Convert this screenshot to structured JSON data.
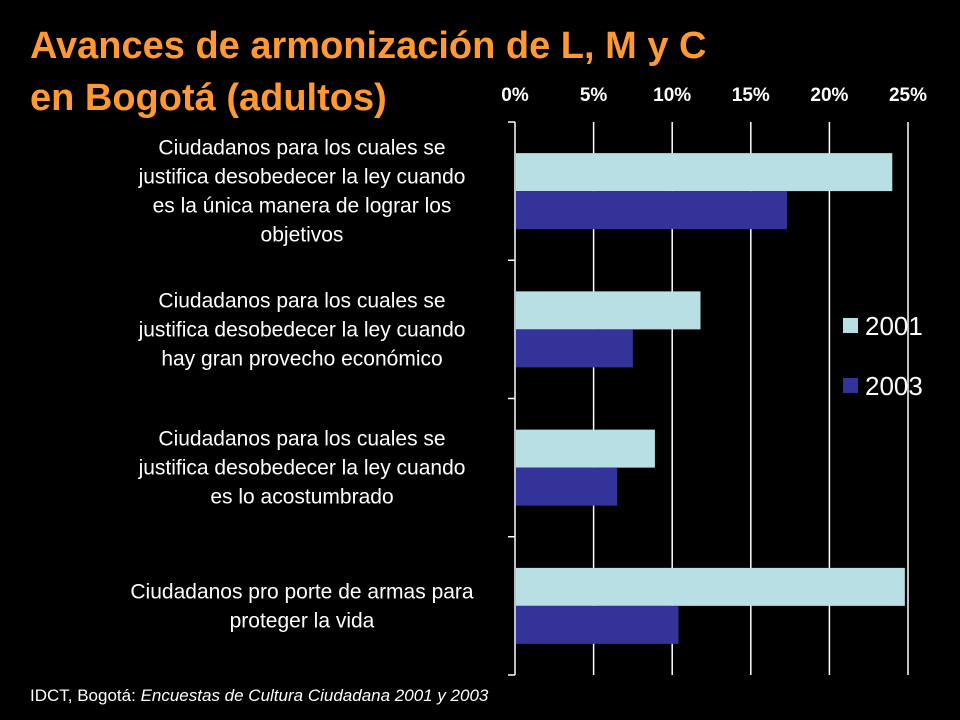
{
  "title_line1": "Avances de armonización de L, M y C",
  "title_line2": "en Bogotá (adultos)",
  "source": {
    "prefix": "IDCT, Bogotá: ",
    "italic": "Encuestas de Cultura Ciudadana 2001 y 2003"
  },
  "colors": {
    "background": "#000000",
    "title": "#FF9933",
    "series_2001": "#B8E0E4",
    "series_2003": "#333399",
    "text": "#FFFFFF"
  },
  "chart_data": {
    "type": "bar",
    "orientation": "horizontal",
    "categories": [
      [
        "Ciudadanos para los cuales se",
        "justifica desobedecer la ley cuando",
        "es la única manera de lograr los",
        "objetivos"
      ],
      [
        "Ciudadanos para los cuales se",
        "justifica desobedecer la ley cuando",
        "hay gran provecho económico"
      ],
      [
        "Ciudadanos para los cuales se",
        "justifica desobedecer la ley cuando",
        "es lo acostumbrado"
      ],
      [
        "Ciudadanos pro porte de armas para",
        "proteger la vida"
      ]
    ],
    "series": [
      {
        "name": "2001",
        "values": [
          24.0,
          11.8,
          8.9,
          24.8
        ]
      },
      {
        "name": "2003",
        "values": [
          17.3,
          7.5,
          6.5,
          10.4
        ]
      }
    ],
    "xticks": [
      "0%",
      "5%",
      "10%",
      "15%",
      "20%",
      "25%"
    ],
    "xlim": [
      0,
      25
    ],
    "grid": true,
    "legend_position": "right"
  }
}
